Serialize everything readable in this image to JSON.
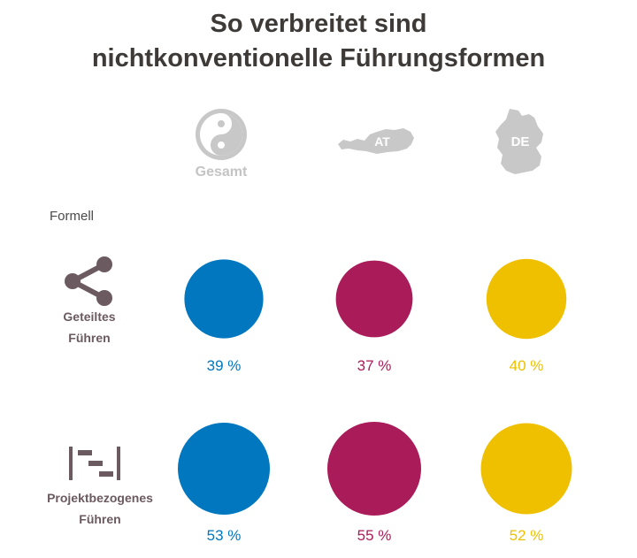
{
  "title_line1": "So verbreitet sind",
  "title_line2": "nichtkonventionelle Führungsformen",
  "columns": [
    {
      "label": "Gesamt",
      "icon": "yin-yang-icon",
      "color": "#0077be"
    },
    {
      "label": "AT",
      "icon": "austria-map-icon",
      "color": "#a91b59"
    },
    {
      "label": "DE",
      "icon": "germany-map-icon",
      "color": "#efc000"
    }
  ],
  "section_label": "Formell",
  "rows": [
    {
      "line1": "Geteiltes",
      "line2": "Führen",
      "icon": "share-icon"
    },
    {
      "line1": "Projektbezogenes",
      "line2": "Führen",
      "icon": "gantt-icon"
    }
  ],
  "chart_data": {
    "type": "bubble-grid",
    "title": "So verbreitet sind nichtkonventionelle Führungsformen",
    "section": "Formell",
    "categories": [
      "Geteiltes Führen",
      "Projektbezogenes Führen"
    ],
    "series": [
      {
        "name": "Gesamt",
        "values": [
          39,
          53
        ],
        "labels": [
          "39 %",
          "53 %"
        ],
        "color": "#0077be"
      },
      {
        "name": "AT",
        "values": [
          37,
          55
        ],
        "labels": [
          "37 %",
          "55 %"
        ],
        "color": "#a91b59"
      },
      {
        "name": "DE",
        "values": [
          40,
          52
        ],
        "labels": [
          "40 %",
          "52 %"
        ],
        "color": "#efc000"
      }
    ],
    "unit": "%"
  }
}
